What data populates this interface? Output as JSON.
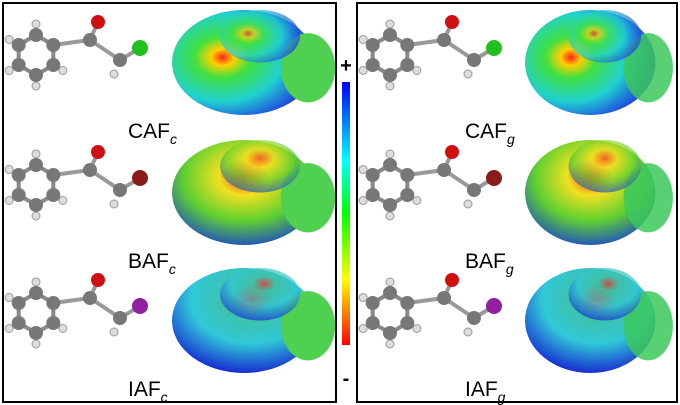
{
  "panels": [
    {
      "rows": [
        {
          "label": "CAF",
          "subscript": "c"
        },
        {
          "label": "BAF",
          "subscript": "c"
        },
        {
          "label": "IAF",
          "subscript": "c"
        }
      ]
    },
    {
      "rows": [
        {
          "label": "CAF",
          "subscript": "g"
        },
        {
          "label": "BAF",
          "subscript": "g"
        },
        {
          "label": "IAF",
          "subscript": "g"
        }
      ]
    }
  ],
  "colorbar": {
    "top": "+",
    "bottom": "-"
  }
}
